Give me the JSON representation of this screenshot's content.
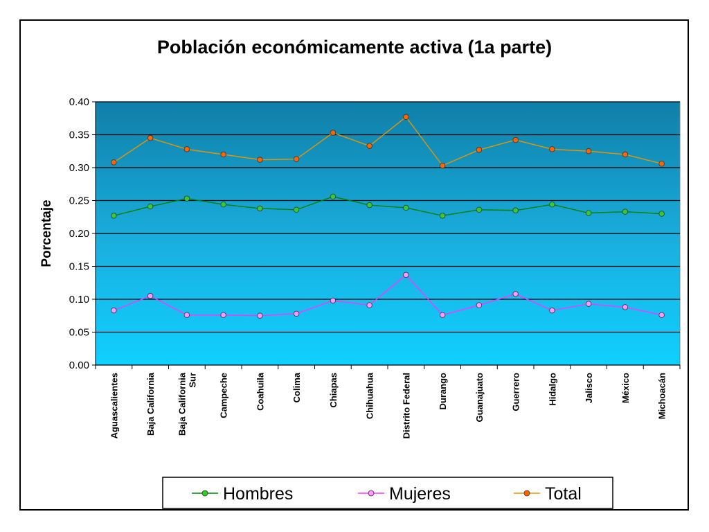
{
  "chart_data": {
    "type": "line",
    "title": "Población económicamente activa (1a parte)",
    "ylabel": "Porcentaje",
    "xlabel": "",
    "ylim": [
      0,
      0.4
    ],
    "yticks": [
      "0.00",
      "0.05",
      "0.10",
      "0.15",
      "0.20",
      "0.25",
      "0.30",
      "0.35",
      "0.40"
    ],
    "grid": true,
    "legend": "bottom",
    "categories": [
      [
        "Aguascalientes"
      ],
      [
        "Baja California"
      ],
      [
        "Baja California",
        "Sur"
      ],
      [
        "Campeche"
      ],
      [
        "Coahuila"
      ],
      [
        "Colima"
      ],
      [
        "Chiapas"
      ],
      [
        "Chihuahua"
      ],
      [
        "Distrito Federal"
      ],
      [
        "Durango"
      ],
      [
        "Guanajuato"
      ],
      [
        "Guerrero"
      ],
      [
        "Hidalgo"
      ],
      [
        "Jalisco"
      ],
      [
        "México"
      ],
      [
        "Michoacán"
      ]
    ],
    "series": [
      {
        "name": "Hombres",
        "line_color": "#008000",
        "marker_color": "#33cc33",
        "values": [
          0.227,
          0.241,
          0.253,
          0.244,
          0.238,
          0.236,
          0.256,
          0.243,
          0.239,
          0.227,
          0.236,
          0.235,
          0.244,
          0.231,
          0.233,
          0.23
        ]
      },
      {
        "name": "Mujeres",
        "line_color": "#ff33ff",
        "marker_color": "#ff99ff",
        "values": [
          0.083,
          0.105,
          0.076,
          0.076,
          0.075,
          0.078,
          0.098,
          0.091,
          0.137,
          0.076,
          0.091,
          0.108,
          0.083,
          0.093,
          0.088,
          0.076
        ]
      },
      {
        "name": "Total",
        "line_color": "#e69500",
        "marker_color": "#ff6600",
        "values": [
          0.308,
          0.345,
          0.328,
          0.32,
          0.312,
          0.313,
          0.353,
          0.333,
          0.377,
          0.303,
          0.327,
          0.342,
          0.328,
          0.325,
          0.32,
          0.306
        ]
      }
    ]
  }
}
